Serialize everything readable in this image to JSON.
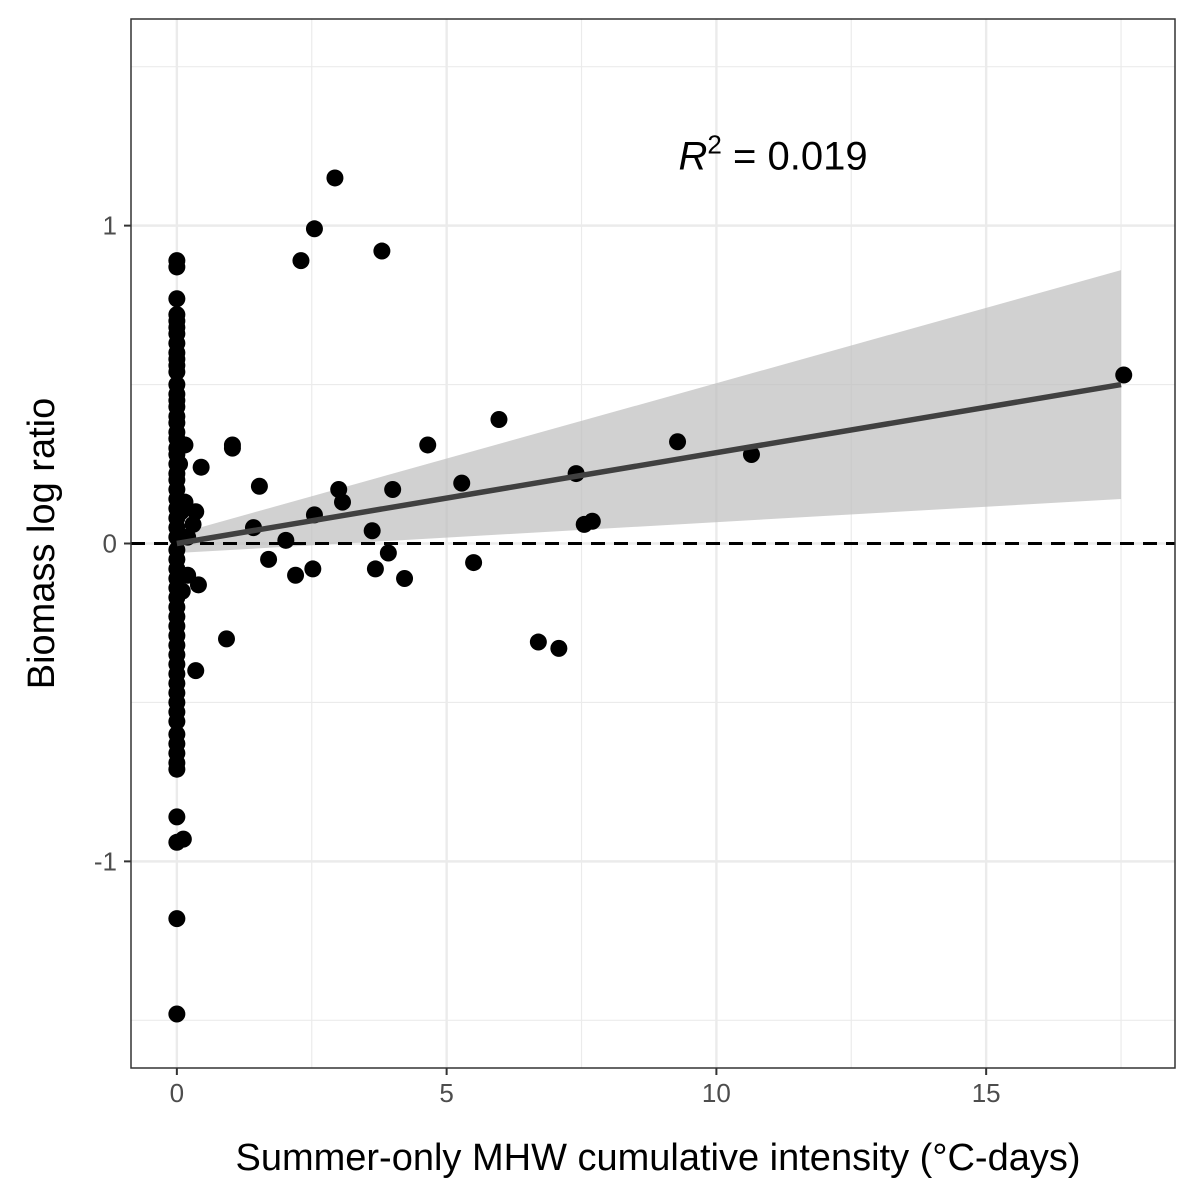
{
  "chart_data": {
    "type": "scatter",
    "xlabel": "Summer-only MHW cumulative intensity (°C-days)",
    "ylabel": "Biomass log ratio",
    "xlim": [
      -0.85,
      18.5
    ],
    "ylim": [
      -1.65,
      1.65
    ],
    "x_ticks": [
      {
        "value": 0,
        "label": "0"
      },
      {
        "value": 5,
        "label": "5"
      },
      {
        "value": 10,
        "label": "10"
      },
      {
        "value": 15,
        "label": "15"
      }
    ],
    "y_ticks": [
      {
        "value": -1,
        "label": "-1"
      },
      {
        "value": 0,
        "label": "0"
      },
      {
        "value": 1,
        "label": "1"
      }
    ],
    "x_minor": [
      2.5,
      7.5,
      12.5,
      17.5
    ],
    "y_minor": [
      -1.5,
      -0.5,
      0.5,
      1.5
    ],
    "grid": true,
    "reference_line": {
      "y": 0,
      "style": "dashed"
    },
    "annotation": {
      "symbol": "R",
      "exponent": "2",
      "text": " = 0.019",
      "x": 11.05,
      "y": 1.22
    },
    "fit": {
      "type": "linear",
      "x": [
        0,
        17.5
      ],
      "y": [
        0.0,
        0.5
      ],
      "ci_upper": [
        0.03,
        0.86
      ],
      "ci_lower": [
        -0.03,
        0.14
      ]
    },
    "colors": {
      "points": "#000000",
      "fit_line": "#404040",
      "ci_band": "#bdbdbd",
      "grid": "#ebebeb",
      "reference": "#000000"
    },
    "points": [
      [
        0,
        0.89
      ],
      [
        0,
        0.87
      ],
      [
        0,
        0.77
      ],
      [
        0,
        0.72
      ],
      [
        0,
        0.7
      ],
      [
        0,
        0.68
      ],
      [
        0,
        0.66
      ],
      [
        0,
        0.63
      ],
      [
        0,
        0.6
      ],
      [
        0,
        0.58
      ],
      [
        0,
        0.56
      ],
      [
        0,
        0.54
      ],
      [
        0,
        0.5
      ],
      [
        0,
        0.47
      ],
      [
        0,
        0.45
      ],
      [
        0,
        0.43
      ],
      [
        0,
        0.4
      ],
      [
        0,
        0.38
      ],
      [
        0,
        0.35
      ],
      [
        0,
        0.33
      ],
      [
        0,
        0.3
      ],
      [
        0,
        0.28
      ],
      [
        0,
        0.25
      ],
      [
        0,
        0.22
      ],
      [
        0,
        0.2
      ],
      [
        0,
        0.17
      ],
      [
        0,
        0.14
      ],
      [
        0,
        0.11
      ],
      [
        0,
        0.08
      ],
      [
        0,
        0.05
      ],
      [
        0,
        0.02
      ],
      [
        0,
        -0.02
      ],
      [
        0,
        -0.05
      ],
      [
        0,
        -0.08
      ],
      [
        0,
        -0.11
      ],
      [
        0,
        -0.14
      ],
      [
        0,
        -0.17
      ],
      [
        0,
        -0.2
      ],
      [
        0,
        -0.23
      ],
      [
        0,
        -0.26
      ],
      [
        0,
        -0.29
      ],
      [
        0,
        -0.32
      ],
      [
        0,
        -0.35
      ],
      [
        0,
        -0.38
      ],
      [
        0,
        -0.41
      ],
      [
        0,
        -0.44
      ],
      [
        0,
        -0.47
      ],
      [
        0,
        -0.5
      ],
      [
        0,
        -0.53
      ],
      [
        0,
        -0.56
      ],
      [
        0,
        -0.6
      ],
      [
        0,
        -0.63
      ],
      [
        0,
        -0.66
      ],
      [
        0,
        -0.69
      ],
      [
        0,
        -0.71
      ],
      [
        0,
        -0.86
      ],
      [
        0,
        -0.94
      ],
      [
        0.12,
        -0.93
      ],
      [
        0,
        -1.18
      ],
      [
        0,
        -1.48
      ],
      [
        0.05,
        0.25
      ],
      [
        0.08,
        0.1
      ],
      [
        0.1,
        -0.15
      ],
      [
        0.15,
        0.31
      ],
      [
        0.15,
        0.13
      ],
      [
        0.2,
        0.02
      ],
      [
        0.2,
        -0.1
      ],
      [
        0.3,
        0.06
      ],
      [
        0.35,
        0.1
      ],
      [
        0.35,
        -0.4
      ],
      [
        0.4,
        -0.13
      ],
      [
        0.45,
        0.24
      ],
      [
        0.92,
        -0.3
      ],
      [
        1.03,
        0.31
      ],
      [
        1.03,
        0.3
      ],
      [
        1.42,
        0.05
      ],
      [
        1.53,
        0.18
      ],
      [
        1.7,
        -0.05
      ],
      [
        2.02,
        0.01
      ],
      [
        2.2,
        -0.1
      ],
      [
        2.3,
        0.89
      ],
      [
        2.52,
        -0.08
      ],
      [
        2.55,
        0.99
      ],
      [
        2.55,
        0.09
      ],
      [
        2.93,
        1.15
      ],
      [
        3.0,
        0.17
      ],
      [
        3.07,
        0.13
      ],
      [
        3.62,
        0.04
      ],
      [
        3.68,
        -0.08
      ],
      [
        3.8,
        0.92
      ],
      [
        3.92,
        -0.03
      ],
      [
        4.0,
        0.17
      ],
      [
        4.22,
        -0.11
      ],
      [
        4.65,
        0.31
      ],
      [
        5.28,
        0.19
      ],
      [
        5.5,
        -0.06
      ],
      [
        5.97,
        0.39
      ],
      [
        6.7,
        -0.31
      ],
      [
        7.08,
        -0.33
      ],
      [
        7.4,
        0.22
      ],
      [
        7.55,
        0.06
      ],
      [
        7.7,
        0.07
      ],
      [
        9.28,
        0.32
      ],
      [
        10.65,
        0.28
      ],
      [
        17.55,
        0.53
      ]
    ]
  }
}
